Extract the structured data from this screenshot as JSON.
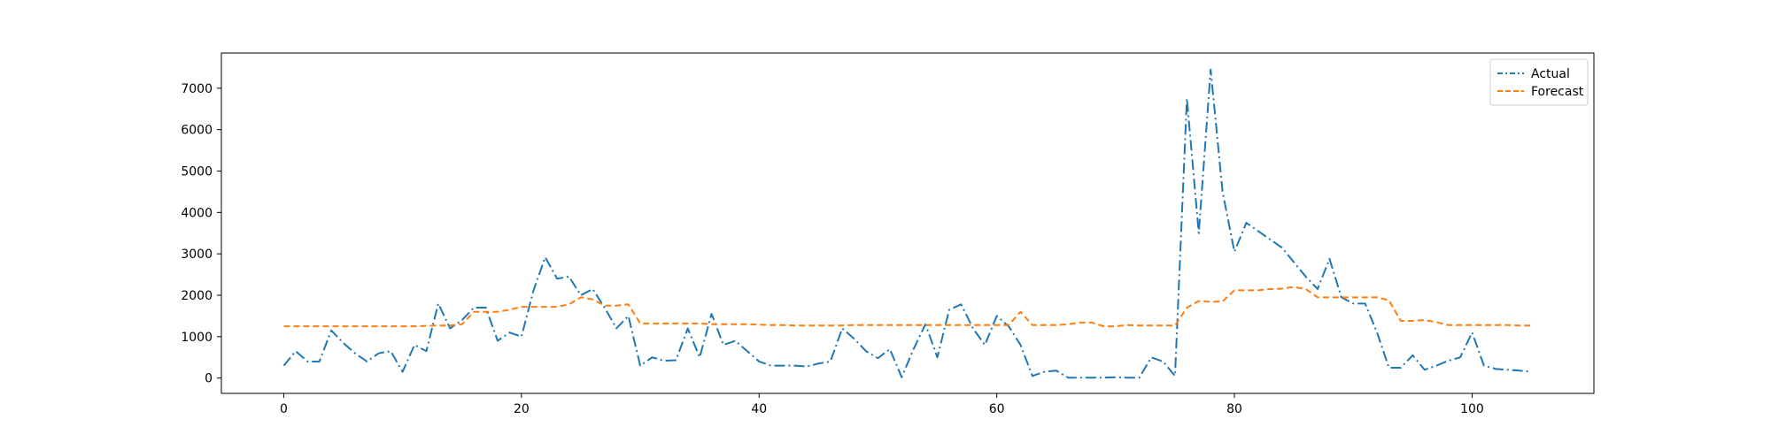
{
  "chart_data": {
    "type": "line",
    "title": "",
    "xlabel": "",
    "ylabel": "",
    "xlim": [
      -5.25,
      110.25
    ],
    "ylim": [
      -370,
      7850
    ],
    "xticks": [
      0,
      20,
      40,
      60,
      80,
      100
    ],
    "yticks": [
      0,
      1000,
      2000,
      3000,
      4000,
      5000,
      6000,
      7000
    ],
    "grid": false,
    "legend_position": "top-right",
    "series": [
      {
        "name": "Actual",
        "color": "#1f77b4",
        "linestyle": "dash-dot",
        "values": [
          300,
          650,
          400,
          400,
          1150,
          850,
          600,
          400,
          600,
          650,
          150,
          800,
          650,
          1800,
          1200,
          1400,
          1700,
          1700,
          900,
          1100,
          1000,
          2100,
          2920,
          2400,
          2450,
          2000,
          2150,
          1700,
          1200,
          1500,
          300,
          500,
          420,
          430,
          1200,
          500,
          1550,
          800,
          900,
          650,
          400,
          300,
          300,
          300,
          280,
          350,
          400,
          1200,
          950,
          650,
          480,
          700,
          20,
          700,
          1300,
          500,
          1650,
          1780,
          1200,
          800,
          1500,
          1250,
          800,
          50,
          150,
          180,
          10,
          10,
          10,
          10,
          20,
          10,
          10,
          500,
          400,
          50,
          6750,
          3500,
          7450,
          4500,
          3050,
          3750,
          3550,
          3350,
          3150,
          2800,
          2450,
          2150,
          2880,
          1950,
          1800,
          1800,
          1100,
          250,
          250,
          550,
          200,
          300,
          420,
          500,
          1100,
          300,
          220,
          200,
          180,
          150
        ]
      },
      {
        "name": "Forecast",
        "color": "#ff7f0e",
        "linestyle": "dashed",
        "values": [
          1250,
          1250,
          1250,
          1250,
          1250,
          1250,
          1250,
          1250,
          1250,
          1250,
          1250,
          1250,
          1260,
          1270,
          1270,
          1300,
          1600,
          1600,
          1600,
          1650,
          1720,
          1720,
          1720,
          1720,
          1780,
          1950,
          1900,
          1750,
          1750,
          1780,
          1320,
          1320,
          1320,
          1320,
          1320,
          1320,
          1300,
          1300,
          1300,
          1300,
          1290,
          1280,
          1280,
          1270,
          1270,
          1270,
          1270,
          1270,
          1280,
          1280,
          1280,
          1280,
          1280,
          1280,
          1280,
          1280,
          1280,
          1280,
          1280,
          1280,
          1280,
          1280,
          1600,
          1280,
          1280,
          1280,
          1300,
          1340,
          1340,
          1250,
          1250,
          1280,
          1270,
          1270,
          1270,
          1270,
          1700,
          1860,
          1840,
          1850,
          2120,
          2120,
          2120,
          2150,
          2160,
          2200,
          2150,
          1950,
          1950,
          1950,
          1950,
          1950,
          1950,
          1880,
          1380,
          1380,
          1400,
          1350,
          1280,
          1280,
          1280,
          1280,
          1280,
          1280,
          1270,
          1270
        ]
      }
    ]
  }
}
